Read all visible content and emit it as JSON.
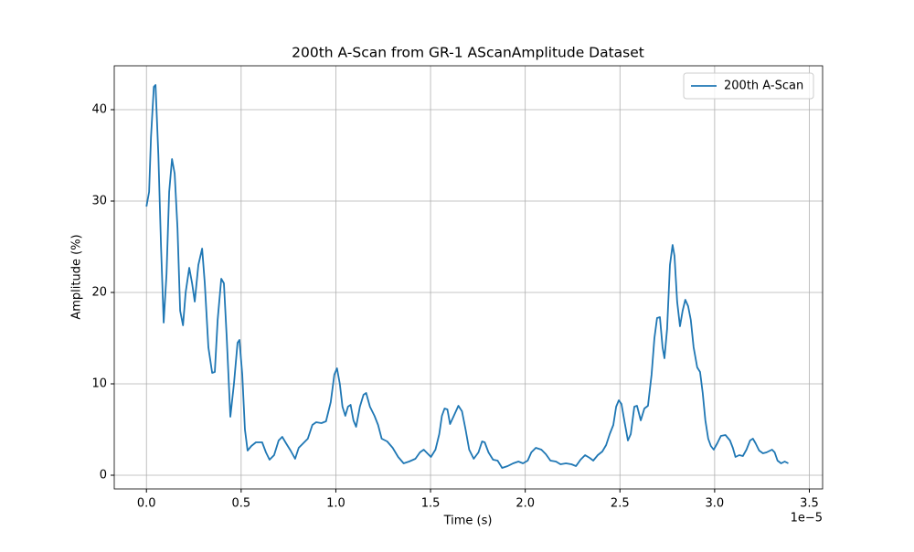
{
  "chart_data": {
    "type": "line",
    "title": "200th A-Scan from GR-1 AScanAmplitude Dataset",
    "xlabel": "Time (s)",
    "ylabel": "Amplitude (%)",
    "x_offset_text": "1e−5",
    "x": [
      0,
      0.014,
      0.024,
      0.039,
      0.048,
      0.063,
      0.077,
      0.091,
      0.106,
      0.12,
      0.135,
      0.149,
      0.164,
      0.178,
      0.193,
      0.207,
      0.226,
      0.241,
      0.255,
      0.274,
      0.294,
      0.308,
      0.327,
      0.347,
      0.361,
      0.376,
      0.395,
      0.409,
      0.424,
      0.443,
      0.462,
      0.481,
      0.491,
      0.506,
      0.52,
      0.534,
      0.554,
      0.578,
      0.611,
      0.631,
      0.65,
      0.674,
      0.698,
      0.717,
      0.737,
      0.761,
      0.785,
      0.804,
      0.828,
      0.852,
      0.876,
      0.896,
      0.924,
      0.948,
      0.973,
      0.992,
      1.006,
      1.021,
      1.035,
      1.05,
      1.064,
      1.078,
      1.093,
      1.107,
      1.127,
      1.146,
      1.16,
      1.18,
      1.204,
      1.223,
      1.242,
      1.271,
      1.3,
      1.329,
      1.358,
      1.387,
      1.42,
      1.444,
      1.464,
      1.483,
      1.502,
      1.526,
      1.546,
      1.56,
      1.574,
      1.589,
      1.603,
      1.623,
      1.647,
      1.666,
      1.685,
      1.704,
      1.728,
      1.753,
      1.772,
      1.786,
      1.806,
      1.83,
      1.854,
      1.878,
      1.907,
      1.936,
      1.964,
      1.988,
      2.013,
      2.032,
      2.056,
      2.085,
      2.109,
      2.133,
      2.162,
      2.186,
      2.215,
      2.244,
      2.268,
      2.292,
      2.316,
      2.34,
      2.359,
      2.383,
      2.407,
      2.427,
      2.446,
      2.465,
      2.48,
      2.494,
      2.508,
      2.523,
      2.542,
      2.557,
      2.576,
      2.59,
      2.61,
      2.629,
      2.648,
      2.667,
      2.682,
      2.696,
      2.711,
      2.725,
      2.735,
      2.749,
      2.764,
      2.778,
      2.788,
      2.802,
      2.817,
      2.831,
      2.845,
      2.86,
      2.874,
      2.889,
      2.908,
      2.923,
      2.937,
      2.951,
      2.966,
      2.98,
      2.995,
      3.014,
      3.033,
      3.057,
      3.081,
      3.096,
      3.11,
      3.13,
      3.149,
      3.168,
      3.187,
      3.202,
      3.216,
      3.235,
      3.255,
      3.274,
      3.303,
      3.317,
      3.332,
      3.351,
      3.37,
      3.389
    ],
    "series": [
      {
        "name": "200th A-Scan",
        "color": "#1f77b4",
        "values": [
          29.4,
          31,
          37,
          42.5,
          42.7,
          35,
          25,
          16.7,
          22,
          31,
          34.6,
          33,
          27,
          18,
          16.4,
          20,
          22.7,
          21,
          19,
          23,
          24.8,
          21,
          14,
          11.2,
          11.3,
          17,
          21.5,
          21,
          15,
          6.4,
          10,
          14.5,
          14.8,
          11,
          5,
          2.7,
          3.2,
          3.6,
          3.6,
          2.5,
          1.7,
          2.2,
          3.8,
          4.2,
          3.5,
          2.7,
          1.8,
          3,
          3.5,
          4,
          5.5,
          5.8,
          5.7,
          5.9,
          8,
          11,
          11.7,
          10,
          7.5,
          6.5,
          7.5,
          7.7,
          6,
          5.3,
          7.5,
          8.8,
          9,
          7.5,
          6.5,
          5.5,
          4,
          3.7,
          3,
          2,
          1.3,
          1.5,
          1.8,
          2.5,
          2.8,
          2.4,
          2.0,
          2.8,
          4.5,
          6.5,
          7.3,
          7.2,
          5.6,
          6.5,
          7.6,
          7,
          5,
          2.8,
          1.8,
          2.5,
          3.7,
          3.6,
          2.5,
          1.7,
          1.6,
          0.8,
          1.0,
          1.3,
          1.5,
          1.3,
          1.6,
          2.5,
          3.0,
          2.8,
          2.3,
          1.6,
          1.5,
          1.2,
          1.3,
          1.2,
          1.0,
          1.7,
          2.2,
          1.9,
          1.6,
          2.2,
          2.6,
          3.3,
          4.5,
          5.5,
          7.5,
          8.2,
          7.8,
          6,
          3.8,
          4.5,
          7.5,
          7.6,
          6,
          7.3,
          7.6,
          11,
          15,
          17.2,
          17.3,
          14,
          12.8,
          16,
          23,
          25.2,
          24,
          19,
          16.3,
          18,
          19.2,
          18.5,
          17,
          14,
          11.8,
          11.3,
          9,
          6,
          4,
          3.2,
          2.8,
          3.5,
          4.3,
          4.4,
          3.8,
          3,
          2,
          2.2,
          2.1,
          2.8,
          3.8,
          4,
          3.5,
          2.7,
          2.4,
          2.5,
          2.8,
          2.5,
          1.6,
          1.3,
          1.5,
          1.3
        ]
      }
    ],
    "xlim": [
      -0.17,
      3.57
    ],
    "ylim": [
      -1.5,
      44.8
    ],
    "xticks": [
      {
        "value": 0,
        "label": "0.0"
      },
      0.5,
      {
        "value": 1,
        "label": "1.0"
      },
      1.5,
      {
        "value": 2,
        "label": "2.0"
      },
      2.5,
      {
        "value": 3,
        "label": "3.0"
      },
      3.5
    ],
    "yticks": [
      0,
      10,
      20,
      30,
      40
    ],
    "grid": true,
    "legend": "upper right"
  }
}
